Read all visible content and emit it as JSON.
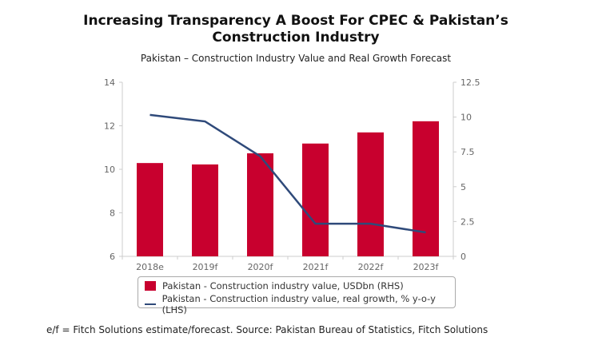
{
  "title": "Increasing Transparency A Boost For CPEC & Pakistan’s Construction Industry",
  "footnote": "e/f = Fitch Solutions estimate/forecast. Source: Pakistan Bureau of Statistics, Fitch Solutions",
  "chart_data": {
    "type": "bar+line",
    "title": "Pakistan – Construction Industry Value and Real Growth Forecast",
    "categories": [
      "2018e",
      "2019f",
      "2020f",
      "2021f",
      "2022f",
      "2023f"
    ],
    "series": [
      {
        "name": "Pakistan - Construction industry value, USDbn (RHS)",
        "type": "bar",
        "axis": "right",
        "color": "#c8002e",
        "values": [
          6.7,
          6.6,
          7.4,
          8.1,
          8.9,
          9.7
        ]
      },
      {
        "name": "Pakistan - Construction industry value, real growth, % y-o-y (LHS)",
        "type": "line",
        "axis": "left",
        "color": "#2f4a7a",
        "values": [
          12.5,
          12.2,
          10.6,
          7.5,
          7.5,
          7.1
        ]
      }
    ],
    "left_axis": {
      "ylim": [
        6,
        14
      ],
      "ticks": [
        "6",
        "8",
        "10",
        "12",
        "14"
      ]
    },
    "right_axis": {
      "ylim": [
        0,
        12.5
      ],
      "ticks": [
        "0",
        "2.5",
        "5",
        "7.5",
        "10",
        "12.5"
      ]
    },
    "grid": false,
    "legend": "bottom"
  }
}
